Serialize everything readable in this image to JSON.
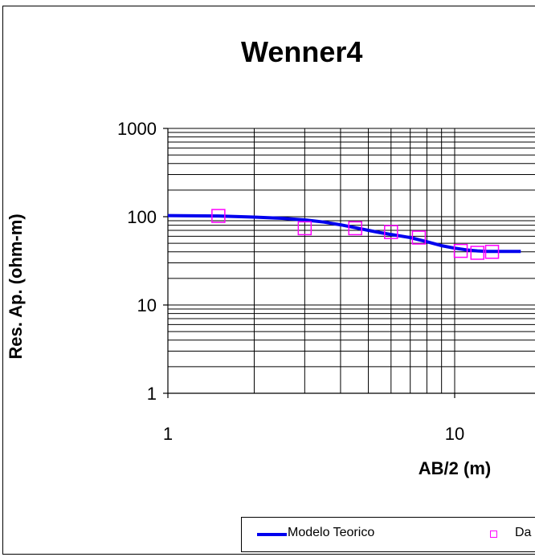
{
  "chart_data": {
    "type": "line",
    "title": "Wenner4",
    "xlabel": "AB/2 (m)",
    "ylabel": "Res. Ap. (ohm-m)",
    "x_scale": "log",
    "y_scale": "log",
    "xlim": [
      1,
      17
    ],
    "ylim": [
      1,
      1000
    ],
    "x_tick_labels": [
      "1",
      "10"
    ],
    "y_tick_labels": [
      "1",
      "10",
      "100",
      "1000"
    ],
    "grid": true,
    "legend_position": "bottom",
    "colors": {
      "model": "#0000ee",
      "data": "#ff00ff"
    },
    "series": [
      {
        "name": "Modelo Teorico",
        "kind": "line",
        "x": [
          1.0,
          1.5,
          2.0,
          2.5,
          3.0,
          3.5,
          4.0,
          4.5,
          5.0,
          5.5,
          6.0,
          7.0,
          8.0,
          9.0,
          10.0,
          11.0,
          12.0,
          13.0,
          14.0,
          16.0,
          17.0
        ],
        "y": [
          103,
          102,
          99,
          96,
          92,
          87,
          81,
          75,
          70,
          66,
          63,
          58,
          52,
          47,
          44,
          42,
          41,
          40.5,
          40.5,
          40.5,
          40.5
        ]
      },
      {
        "name": "Da",
        "kind": "scatter",
        "x": [
          1.5,
          3.0,
          4.5,
          6.0,
          7.5,
          10.5,
          12.0,
          13.5
        ],
        "y": [
          102,
          74,
          74,
          67,
          58,
          41,
          39,
          40
        ]
      }
    ]
  }
}
